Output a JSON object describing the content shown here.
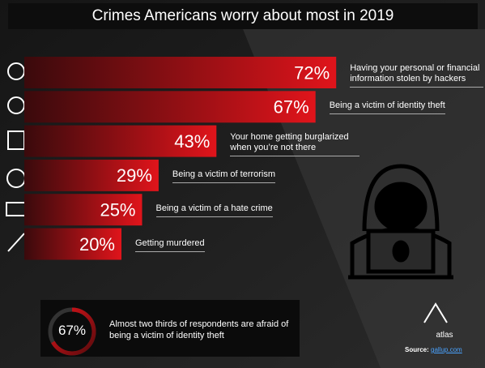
{
  "chart_data": {
    "type": "bar",
    "title": "Crimes Americans worry about most in 2019",
    "categories": [
      "Having your personal or financial information stolen by hackers",
      "Being a victim of identity theft",
      "Your home getting burglarized when you’re not there",
      "Being a victim of terrorism",
      "Being a victim of a hate crime",
      "Getting murdered"
    ],
    "values": [
      72,
      67,
      43,
      29,
      25,
      20
    ],
    "value_labels": [
      "72%",
      "67%",
      "43%",
      "29%",
      "25%",
      "20%"
    ],
    "color": "#e0141b",
    "callout": {
      "value": 67,
      "label": "67%",
      "text": "Almost two thirds of respondents are afraid of being a victim of identity theft"
    },
    "logo": "atlas",
    "source": {
      "label": "Source:",
      "link": "gallup.com"
    }
  }
}
